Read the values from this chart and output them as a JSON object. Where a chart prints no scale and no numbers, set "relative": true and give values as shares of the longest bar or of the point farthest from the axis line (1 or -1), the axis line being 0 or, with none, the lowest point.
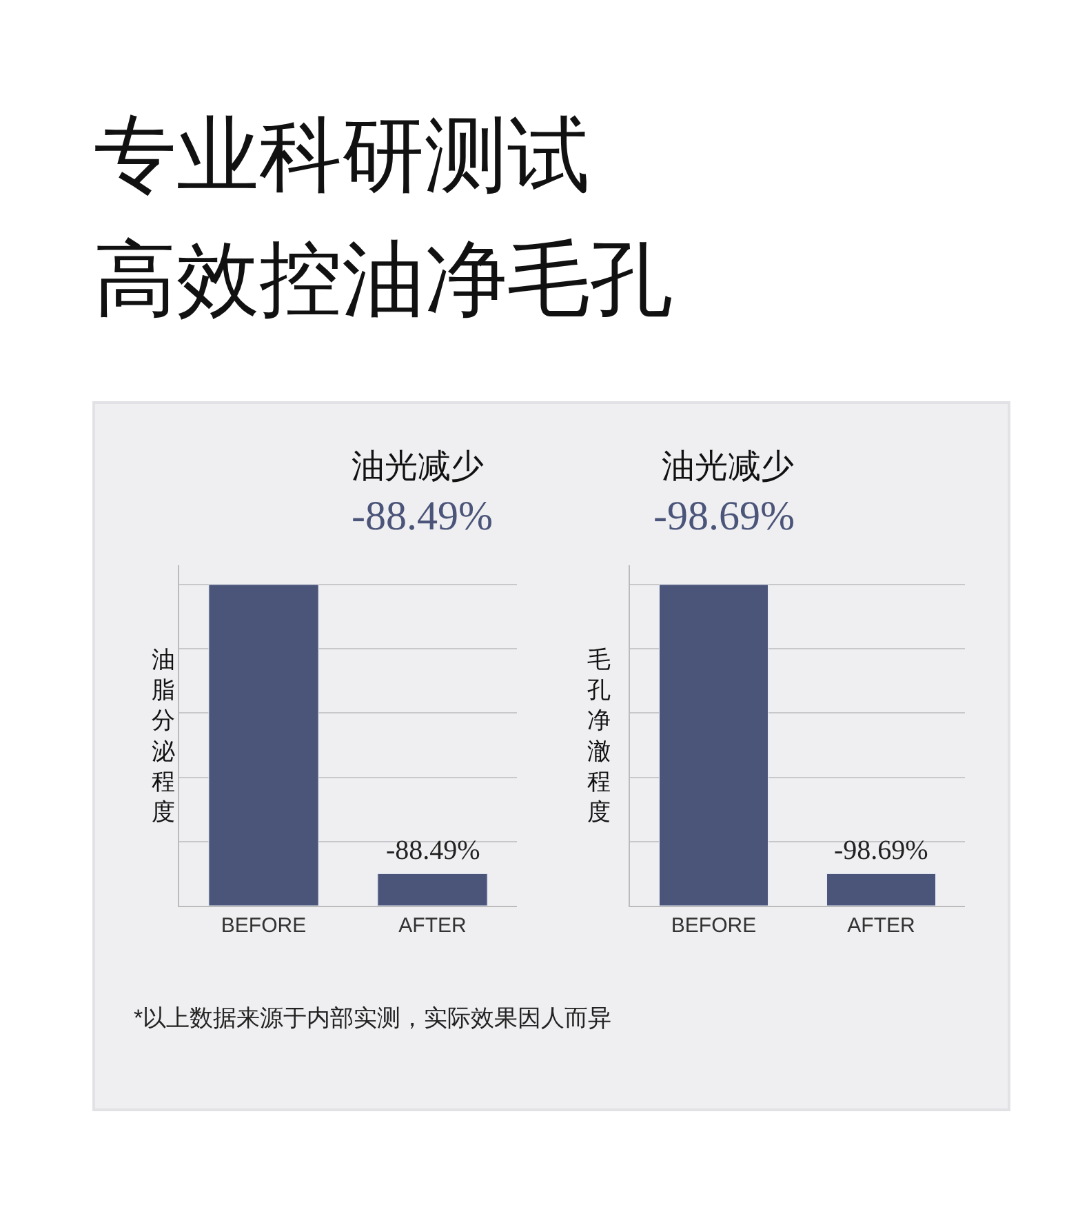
{
  "chart_data": [
    {
      "type": "bar",
      "title": "油光减少",
      "subtitle": "-88.49%",
      "ylabel": "油脂分泌程度",
      "categories": [
        "BEFORE",
        "AFTER"
      ],
      "values": [
        1,
        0.1
      ],
      "color": "#4b5479",
      "relative": true,
      "grid": "y",
      "annotations": [
        "专业科研测试",
        "高效控油净毛孔",
        {
          "text": "-88.49%",
          "x": "AFTER",
          "y": 0.1
        },
        "*以上数据来源于内部实测，实际效果因人而异"
      ]
    },
    {
      "type": "bar",
      "title": "油光减少",
      "subtitle": "-98.69%",
      "ylabel": "毛孔净澈程度",
      "categories": [
        "BEFORE",
        "AFTER"
      ],
      "values": [
        1,
        0.1
      ],
      "color": "#4b5479",
      "relative": true,
      "grid": "y",
      "annotations": [
        {
          "text": "-98.69%",
          "x": "AFTER",
          "y": 0.1
        }
      ]
    }
  ]
}
